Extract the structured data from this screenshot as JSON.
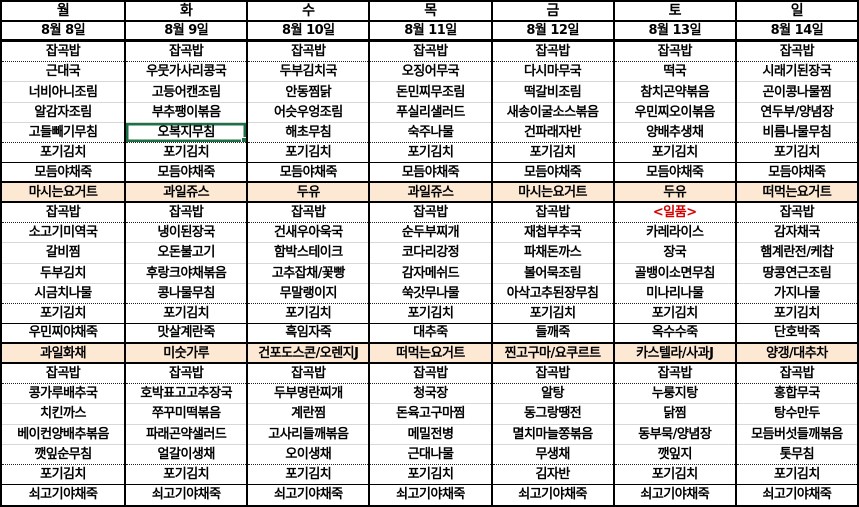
{
  "week": [
    {
      "day": "월",
      "date": "8월 8일",
      "breakfast": [
        "잡곡밥",
        "근대국",
        "너비아니조림",
        "알감자조림",
        "고들빼기무침",
        "포기김치",
        "모듬야채죽"
      ],
      "breakfast_snack": "마시는요거트",
      "lunch": [
        "잡곡밥",
        "소고기미역국",
        "갈비찜",
        "두부김치",
        "시금치나물",
        "포기김치",
        "우민찌야채죽"
      ],
      "lunch_snack": "과일화채",
      "dinner": [
        "잡곡밥",
        "콩가루배추국",
        "치킨까스",
        "베이컨양배추볶음",
        "깻잎순무침",
        "포기김치",
        "쇠고기야채죽"
      ]
    },
    {
      "day": "화",
      "date": "8월 9일",
      "breakfast": [
        "잡곡밥",
        "우뭇가사리콩국",
        "고등어캔조림",
        "부추팽이볶음",
        "오복지무침",
        "포기김치",
        "모듬야채죽"
      ],
      "breakfast_snack": "과일쥬스",
      "lunch": [
        "잡곡밥",
        "냉이된장국",
        "오돈불고기",
        "후랑크야채볶음",
        "콩나물무침",
        "포기김치",
        "맛살계란죽"
      ],
      "lunch_snack": "미숫가루",
      "dinner": [
        "잡곡밥",
        "호박표고고추장국",
        "쭈꾸미떡볶음",
        "파래곤약샐러드",
        "얼갈이생채",
        "포기김치",
        "쇠고기야채죽"
      ]
    },
    {
      "day": "수",
      "date": "8월 10일",
      "breakfast": [
        "잡곡밥",
        "두부김치국",
        "안동찜닭",
        "어슷우엉조림",
        "해초무침",
        "포기김치",
        "모듬야채죽"
      ],
      "breakfast_snack": "두유",
      "lunch": [
        "잡곡밥",
        "건새우아욱국",
        "함박스테이크",
        "고추잡채/꽃빵",
        "무말랭이지",
        "포기김치",
        "흑임자죽"
      ],
      "lunch_snack": "건포도스콘/오렌지J",
      "dinner": [
        "잡곡밥",
        "두부명란찌개",
        "계란찜",
        "고사리들깨볶음",
        "오이생채",
        "포기김치",
        "쇠고기야채죽"
      ]
    },
    {
      "day": "목",
      "date": "8월 11일",
      "breakfast": [
        "잡곡밥",
        "오징어무국",
        "돈민찌무조림",
        "푸실리샐러드",
        "숙주나물",
        "포기김치",
        "모듬야채죽"
      ],
      "breakfast_snack": "과일쥬스",
      "lunch": [
        "잡곡밥",
        "순두부찌개",
        "코다리강정",
        "감자메쉬드",
        "쑥갓무나물",
        "포기김치",
        "대추죽"
      ],
      "lunch_snack": "떠먹는요거트",
      "dinner": [
        "잡곡밥",
        "청국장",
        "돈육고구마찜",
        "메밀전병",
        "근대나물",
        "포기김치",
        "쇠고기야채죽"
      ]
    },
    {
      "day": "금",
      "date": "8월 12일",
      "breakfast": [
        "잡곡밥",
        "다시마무국",
        "떡갈비조림",
        "새송이굴소스볶음",
        "건파래자반",
        "포기김치",
        "모듬야채죽"
      ],
      "breakfast_snack": "마시는요거트",
      "lunch": [
        "잡곡밥",
        "재첩부추국",
        "파채돈까스",
        "볼어묵조림",
        "아삭고추된장무침",
        "포기김치",
        "들깨죽"
      ],
      "lunch_snack": "찐고구마/요쿠르트",
      "dinner": [
        "잡곡밥",
        "알탕",
        "동그랑땡전",
        "멸치마늘쫑볶음",
        "무생채",
        "김자반",
        "쇠고기야채죽"
      ]
    },
    {
      "day": "토",
      "date": "8월 13일",
      "breakfast": [
        "잡곡밥",
        "떡국",
        "참치곤약볶음",
        "우민찌오이볶음",
        "양배추생채",
        "포기김치",
        "모듬야채죽"
      ],
      "breakfast_snack": "두유",
      "lunch": [
        "<일품>",
        "카레라이스",
        "장국",
        "골뱅이소면무침",
        "미나리나물",
        "포기김치",
        "옥수수죽"
      ],
      "lunch_snack": "카스텔라/사과J",
      "dinner": [
        "잡곡밥",
        "누룽지탕",
        "닭찜",
        "동부묵/양념장",
        "깻잎지",
        "포기김치",
        "쇠고기야채죽"
      ]
    },
    {
      "day": "일",
      "date": "8월 14일",
      "breakfast": [
        "잡곡밥",
        "시래기된장국",
        "곤이콩나물찜",
        "연두부/양념장",
        "비름나물무침",
        "포기김치",
        "모듬야채죽"
      ],
      "breakfast_snack": "떠먹는요거트",
      "lunch": [
        "잡곡밥",
        "감자채국",
        "햄계란전/케찹",
        "땅콩연근조림",
        "가지나물",
        "포기김치",
        "단호박죽"
      ],
      "lunch_snack": "양갱/대추차",
      "dinner": [
        "잡곡밥",
        "홍합무국",
        "탕수만두",
        "모듬버섯들깨볶음",
        "톳무침",
        "포기김치",
        "쇠고기야채죽"
      ]
    }
  ],
  "selection": {
    "day": "화",
    "item": "오복지무침",
    "day_index": 1,
    "row_index": 6
  },
  "special": {
    "label": "<일품>",
    "color": "#D60000"
  },
  "colors": {
    "snack_bg": "#FCE8D3",
    "grid_gray": "#D8D8D8",
    "selection_green": "#1E7145",
    "border_black": "#000000"
  }
}
